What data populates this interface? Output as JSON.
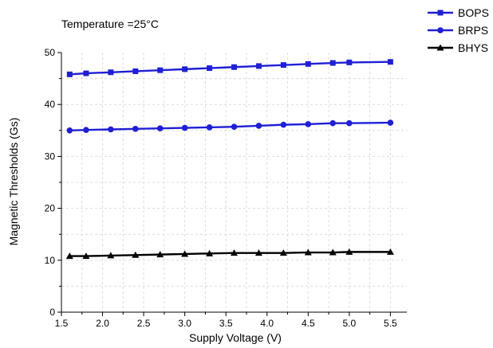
{
  "chart_data": {
    "type": "line",
    "annotation": "Temperature =25°C",
    "xlabel": "Supply Voltage (V)",
    "ylabel": "Magnetic Thresholds (Gs)",
    "xlim": [
      1.5,
      5.7
    ],
    "ylim": [
      0,
      50
    ],
    "xticks": [
      "1.5",
      "2.0",
      "2.5",
      "3.0",
      "3.5",
      "4.0",
      "4.5",
      "5.0",
      "5.5"
    ],
    "yticks": [
      "0",
      "10",
      "20",
      "30",
      "40",
      "50"
    ],
    "grid": true,
    "legend_position": "top-right outside",
    "x": [
      1.6,
      1.8,
      2.1,
      2.4,
      2.7,
      3.0,
      3.3,
      3.6,
      3.9,
      4.2,
      4.5,
      4.8,
      5.0,
      5.5
    ],
    "series": [
      {
        "name": "BOPS",
        "marker": "square",
        "color": "#1f1fd6",
        "values": [
          45.8,
          46.0,
          46.2,
          46.4,
          46.6,
          46.8,
          47.0,
          47.2,
          47.4,
          47.6,
          47.8,
          48.0,
          48.1,
          48.2
        ]
      },
      {
        "name": "BRPS",
        "marker": "circle",
        "color": "#1f1fd6",
        "values": [
          35.0,
          35.1,
          35.2,
          35.3,
          35.4,
          35.5,
          35.6,
          35.7,
          35.9,
          36.1,
          36.2,
          36.4,
          36.4,
          36.5
        ]
      },
      {
        "name": "BHYS",
        "marker": "triangle",
        "color": "#000000",
        "values": [
          10.8,
          10.8,
          10.9,
          11.0,
          11.1,
          11.2,
          11.3,
          11.4,
          11.4,
          11.4,
          11.5,
          11.5,
          11.6,
          11.6
        ]
      }
    ]
  }
}
